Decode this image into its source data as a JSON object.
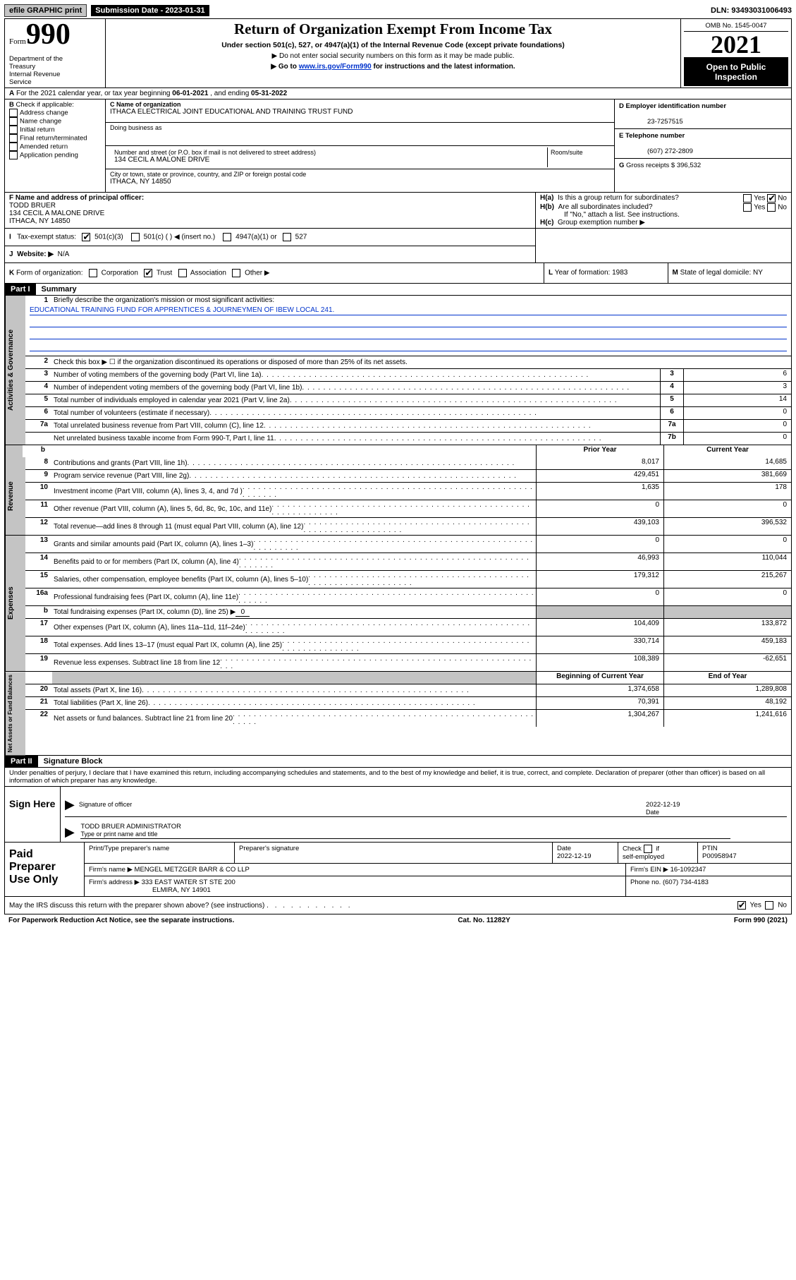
{
  "top_bar": {
    "efile": "efile GRAPHIC print",
    "submission": "Submission Date - 2023-01-31",
    "dln": "DLN: 93493031006493"
  },
  "header": {
    "form_word": "Form",
    "form_num": "990",
    "dept": "Department of the Treasury\nInternal Revenue Service",
    "title": "Return of Organization Exempt From Income Tax",
    "sub1": "Under section 501(c), 527, or 4947(a)(1) of the Internal Revenue Code (except private foundations)",
    "sub2a": "▶ Do not enter social security numbers on this form as it may be made public.",
    "sub2b_pre": "▶ Go to ",
    "sub2b_link": "www.irs.gov/Form990",
    "sub2b_post": " for instructions and the latest information.",
    "omb": "OMB No. 1545-0047",
    "year": "2021",
    "opi": "Open to Public Inspection"
  },
  "line_a": {
    "text_pre": "For the 2021 calendar year, or tax year beginning ",
    "begin": "06-01-2021",
    "mid": " , and ending ",
    "end": "05-31-2022"
  },
  "box_b": {
    "label": "Check if applicable:",
    "items": [
      "Address change",
      "Name change",
      "Initial return",
      "Final return/terminated",
      "Amended return",
      "Application pending"
    ],
    "prefix": "B"
  },
  "box_c": {
    "name_lbl": "C Name of organization",
    "name": "ITHACA ELECTRICAL JOINT EDUCATIONAL AND TRAINING TRUST FUND",
    "dba_lbl": "Doing business as",
    "addr_lbl": "Number and street (or P.O. box if mail is not delivered to street address)",
    "room_lbl": "Room/suite",
    "addr": "134 CECIL A MALONE DRIVE",
    "city_lbl": "City or town, state or province, country, and ZIP or foreign postal code",
    "city": "ITHACA, NY  14850"
  },
  "box_d": {
    "lbl": "D Employer identification number",
    "val": "23-7257515"
  },
  "box_e": {
    "lbl": "E Telephone number",
    "val": "(607) 272-2809"
  },
  "box_g": {
    "lbl": "Gross receipts $",
    "val": "396,532",
    "prefix": "G"
  },
  "box_f": {
    "lbl": "F  Name and address of principal officer:",
    "name": "TODD BRUER",
    "addr1": "134 CECIL A MALONE DRIVE",
    "addr2": "ITHACA, NY  14850"
  },
  "box_h": {
    "a": "Is this a group return for subordinates?",
    "a_pre": "H(a)",
    "b": "Are all subordinates included?",
    "b_pre": "H(b)",
    "b_note": "If \"No,\" attach a list. See instructions.",
    "c": "Group exemption number ▶",
    "c_pre": "H(c)",
    "yes": "Yes",
    "no": "No"
  },
  "line_i": {
    "lbl": "Tax-exempt status:",
    "prefix": "I",
    "opts": [
      "501(c)(3)",
      "501(c) (  ) ◀ (insert no.)",
      "4947(a)(1) or",
      "527"
    ]
  },
  "line_j": {
    "lbl": "Website: ▶",
    "val": "N/A",
    "prefix": "J"
  },
  "line_k": {
    "lbl": "Form of organization:",
    "prefix": "K",
    "opts": [
      "Corporation",
      "Trust",
      "Association",
      "Other ▶"
    ]
  },
  "box_l": {
    "lbl": "Year of formation:",
    "val": "1983",
    "prefix": "L"
  },
  "box_m": {
    "lbl": "State of legal domicile:",
    "val": "NY",
    "prefix": "M"
  },
  "part1": {
    "tag": "Part I",
    "title": "Summary"
  },
  "part2": {
    "tag": "Part II",
    "title": "Signature Block"
  },
  "sections": {
    "gov": {
      "vtab": "Activities & Governance",
      "l1_lbl": "Briefly describe the organization's mission or most significant activities:",
      "l1_val": "EDUCATIONAL TRAINING FUND FOR APPRENTICES & JOURNEYMEN OF IBEW LOCAL 241.",
      "l2": "Check this box ▶ ☐ if the organization discontinued its operations or disposed of more than 25% of its net assets.",
      "rows": [
        {
          "n": "3",
          "d": "Number of voting members of the governing body (Part VI, line 1a)",
          "id": "3",
          "v": "6"
        },
        {
          "n": "4",
          "d": "Number of independent voting members of the governing body (Part VI, line 1b)",
          "id": "4",
          "v": "3"
        },
        {
          "n": "5",
          "d": "Total number of individuals employed in calendar year 2021 (Part V, line 2a)",
          "id": "5",
          "v": "14"
        },
        {
          "n": "6",
          "d": "Total number of volunteers (estimate if necessary)",
          "id": "6",
          "v": "0"
        },
        {
          "n": "7a",
          "d": "Total unrelated business revenue from Part VIII, column (C), line 12",
          "id": "7a",
          "v": "0"
        },
        {
          "n": "",
          "d": "Net unrelated business taxable income from Form 990-T, Part I, line 11",
          "id": "7b",
          "v": "0"
        }
      ]
    },
    "rev": {
      "vtab": "Revenue",
      "hdr_prior": "Prior Year",
      "hdr_curr": "Current Year",
      "rows_b": [
        {
          "n": "b",
          "d": ""
        }
      ],
      "rows": [
        {
          "n": "8",
          "d": "Contributions and grants (Part VIII, line 1h)",
          "p": "8,017",
          "c": "14,685"
        },
        {
          "n": "9",
          "d": "Program service revenue (Part VIII, line 2g)",
          "p": "429,451",
          "c": "381,669"
        },
        {
          "n": "10",
          "d": "Investment income (Part VIII, column (A), lines 3, 4, and 7d )",
          "p": "1,635",
          "c": "178"
        },
        {
          "n": "11",
          "d": "Other revenue (Part VIII, column (A), lines 5, 6d, 8c, 9c, 10c, and 11e)",
          "p": "0",
          "c": "0"
        },
        {
          "n": "12",
          "d": "Total revenue—add lines 8 through 11 (must equal Part VIII, column (A), line 12)",
          "p": "439,103",
          "c": "396,532"
        }
      ]
    },
    "exp": {
      "vtab": "Expenses",
      "rows": [
        {
          "n": "13",
          "d": "Grants and similar amounts paid (Part IX, column (A), lines 1–3)",
          "p": "0",
          "c": "0"
        },
        {
          "n": "14",
          "d": "Benefits paid to or for members (Part IX, column (A), line 4)",
          "p": "46,993",
          "c": "110,044"
        },
        {
          "n": "15",
          "d": "Salaries, other compensation, employee benefits (Part IX, column (A), lines 5–10)",
          "p": "179,312",
          "c": "215,267"
        },
        {
          "n": "16a",
          "d": "Professional fundraising fees (Part IX, column (A), line 11e)",
          "p": "0",
          "c": "0"
        }
      ],
      "row_b": {
        "n": "b",
        "d": "Total fundraising expenses (Part IX, column (D), line 25) ▶",
        "u": "0"
      },
      "rows2": [
        {
          "n": "17",
          "d": "Other expenses (Part IX, column (A), lines 11a–11d, 11f–24e)",
          "p": "104,409",
          "c": "133,872"
        },
        {
          "n": "18",
          "d": "Total expenses. Add lines 13–17 (must equal Part IX, column (A), line 25)",
          "p": "330,714",
          "c": "459,183"
        },
        {
          "n": "19",
          "d": "Revenue less expenses. Subtract line 18 from line 12",
          "p": "108,389",
          "c": "-62,651"
        }
      ]
    },
    "net": {
      "vtab": "Net Assets or Fund Balances",
      "hdr_b": "Beginning of Current Year",
      "hdr_e": "End of Year",
      "rows": [
        {
          "n": "20",
          "d": "Total assets (Part X, line 16)",
          "p": "1,374,658",
          "c": "1,289,808"
        },
        {
          "n": "21",
          "d": "Total liabilities (Part X, line 26)",
          "p": "70,391",
          "c": "48,192"
        },
        {
          "n": "22",
          "d": "Net assets or fund balances. Subtract line 21 from line 20",
          "p": "1,304,267",
          "c": "1,241,616"
        }
      ]
    }
  },
  "sig": {
    "jurat": "Under penalties of perjury, I declare that I have examined this return, including accompanying schedules and statements, and to the best of my knowledge and belief, it is true, correct, and complete. Declaration of preparer (other than officer) is based on all information of which preparer has any knowledge.",
    "sign_here": "Sign Here",
    "sig_officer": "Signature of officer",
    "date_lbl": "Date",
    "date": "2022-12-19",
    "name": "TODD BRUER  ADMINISTRATOR",
    "name_lbl": "Type or print name and title"
  },
  "preparer": {
    "lbl": "Paid Preparer Use Only",
    "h1": "Print/Type preparer's name",
    "h2": "Preparer's signature",
    "h3": "Date",
    "h4": "Check ☐ if self-employed",
    "h5": "PTIN",
    "date": "2022-12-19",
    "ptin": "P00958947",
    "firm_name_lbl": "Firm's name   ▶",
    "firm_name": "MENGEL METZGER BARR & CO LLP",
    "firm_ein_lbl": "Firm's EIN ▶",
    "firm_ein": "16-1092347",
    "firm_addr_lbl": "Firm's address ▶",
    "firm_addr1": "333 EAST WATER ST STE 200",
    "firm_addr2": "ELMIRA, NY  14901",
    "phone_lbl": "Phone no.",
    "phone": "(607) 734-4183"
  },
  "discuss": {
    "q": "May the IRS discuss this return with the preparer shown above? (see instructions)",
    "yes": "Yes",
    "no": "No"
  },
  "footer": {
    "l": "For Paperwork Reduction Act Notice, see the separate instructions.",
    "c": "Cat. No. 11282Y",
    "r": "Form 990 (2021)"
  }
}
